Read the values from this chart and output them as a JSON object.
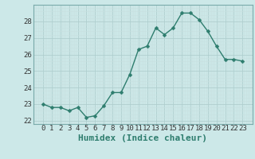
{
  "x": [
    0,
    1,
    2,
    3,
    4,
    5,
    6,
    7,
    8,
    9,
    10,
    11,
    12,
    13,
    14,
    15,
    16,
    17,
    18,
    19,
    20,
    21,
    22,
    23
  ],
  "y": [
    23.0,
    22.8,
    22.8,
    22.6,
    22.8,
    22.2,
    22.3,
    22.9,
    23.7,
    23.7,
    24.8,
    26.3,
    26.5,
    27.6,
    27.2,
    27.6,
    28.5,
    28.5,
    28.1,
    27.4,
    26.5,
    25.7,
    25.7,
    25.6
  ],
  "line_color": "#2e7d6e",
  "marker": "D",
  "marker_size": 2.5,
  "bg_color": "#cce8e8",
  "grid_color_major": "#b0cece",
  "grid_color_minor": "#c8e0e0",
  "xlabel": "Humidex (Indice chaleur)",
  "ylim_min": 21.8,
  "ylim_max": 29.0,
  "yticks": [
    22,
    23,
    24,
    25,
    26,
    27,
    28
  ],
  "xticks": [
    0,
    1,
    2,
    3,
    4,
    5,
    6,
    7,
    8,
    9,
    10,
    11,
    12,
    13,
    14,
    15,
    16,
    17,
    18,
    19,
    20,
    21,
    22,
    23
  ],
  "tick_label_fontsize": 6.5,
  "xlabel_fontsize": 8,
  "linewidth": 1.0
}
